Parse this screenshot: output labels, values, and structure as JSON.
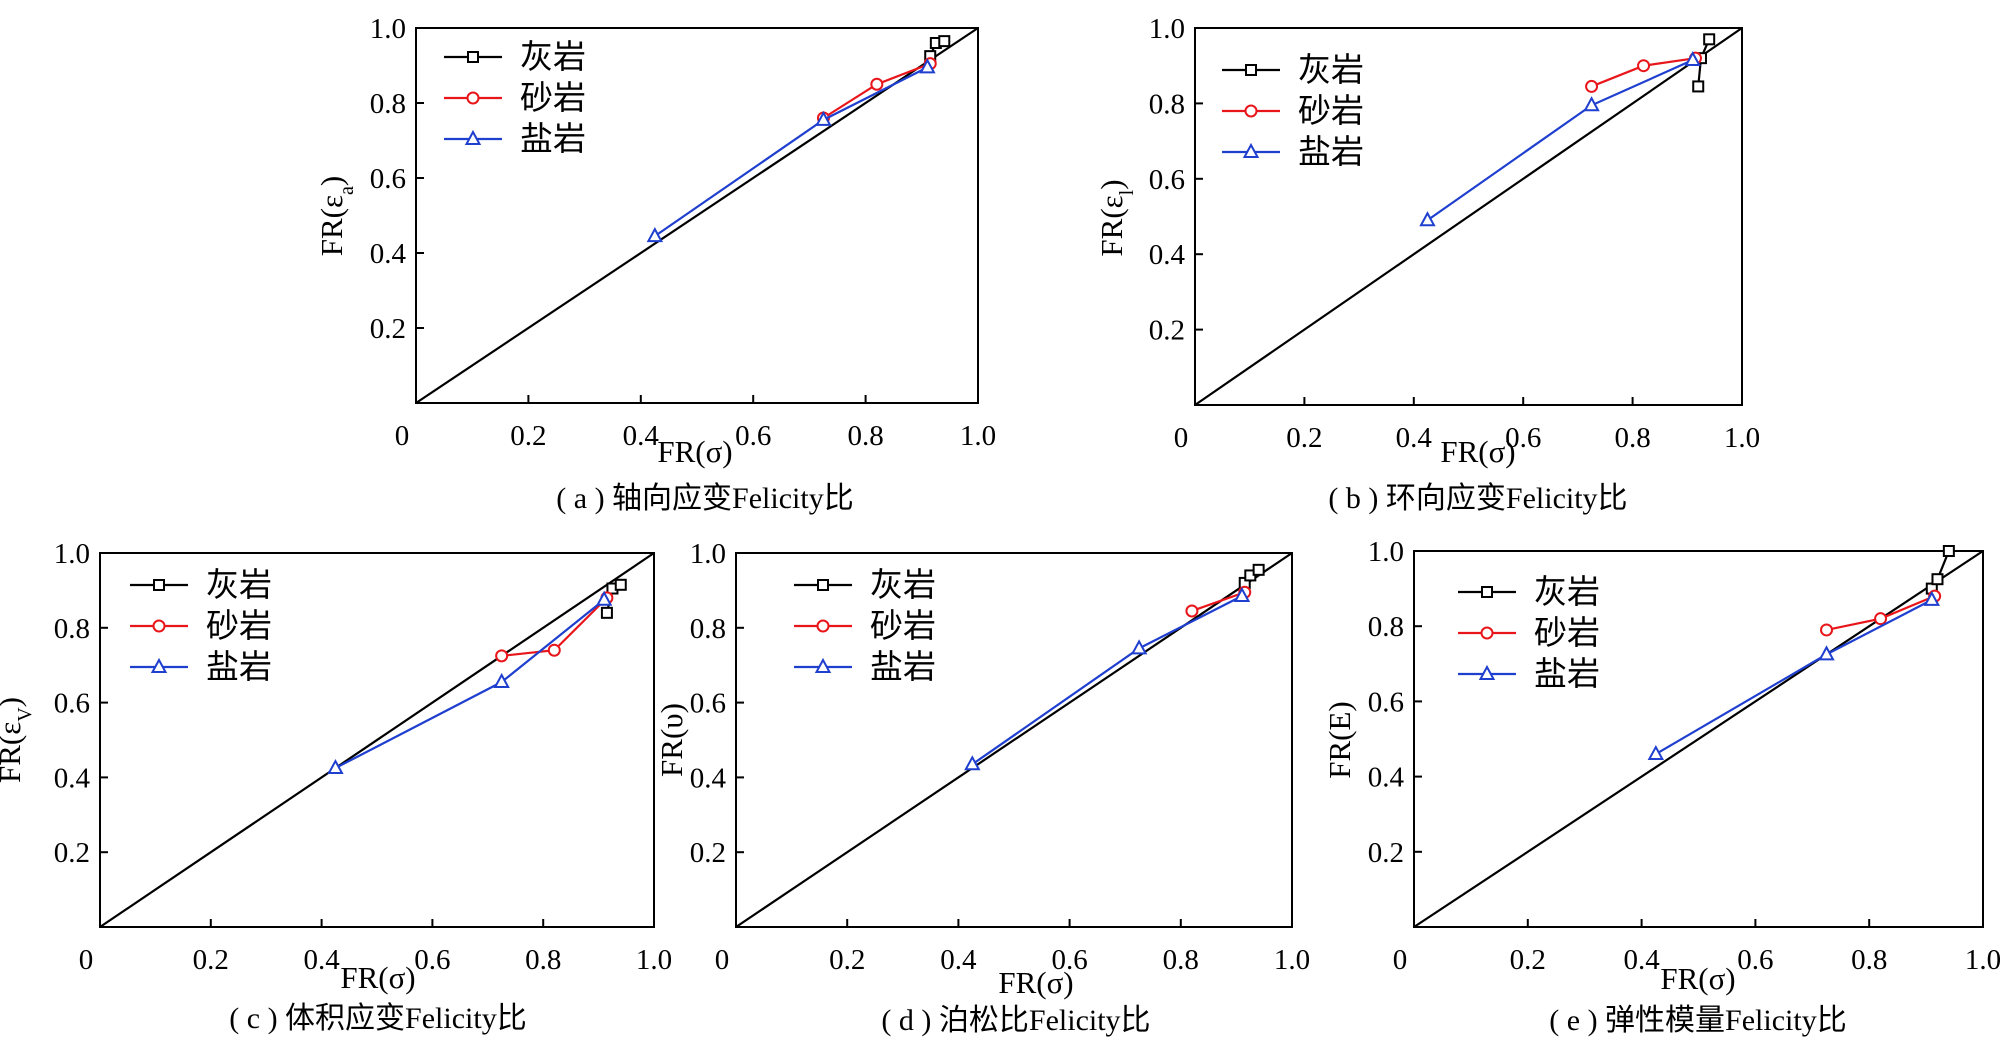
{
  "colors": {
    "limestone": "#000000",
    "sandstone": "#e8161b",
    "salt": "#1f3fcf",
    "diagonal": "#000000"
  },
  "legend": {
    "limestone": "灰岩",
    "sandstone": "砂岩",
    "salt": "盐岩"
  },
  "chart_data": [
    {
      "id": "a",
      "type": "line",
      "caption": "( a ) 轴向应变Felicity比",
      "xlabel": "FR(σ)",
      "ylabel": "FR(εa)",
      "ylabel_main": "FR(ε",
      "ylabel_sub": "a",
      "ylabel_close": ")",
      "xlim": [
        0,
        1
      ],
      "ylim": [
        0,
        1
      ],
      "xticks": [
        "0",
        "0.2",
        "0.4",
        "0.6",
        "0.8",
        "1.0"
      ],
      "yticks": [
        "0.2",
        "0.4",
        "0.6",
        "0.8",
        "1.0"
      ],
      "diagonal": true,
      "legend_position": "top-left",
      "series": [
        {
          "name": "灰岩",
          "marker": "square",
          "x": [
            0.915,
            0.925,
            0.94
          ],
          "y": [
            0.925,
            0.96,
            0.965
          ]
        },
        {
          "name": "砂岩",
          "marker": "circle",
          "x": [
            0.725,
            0.82,
            0.915
          ],
          "y": [
            0.76,
            0.85,
            0.905
          ]
        },
        {
          "name": "盐岩",
          "marker": "triangle",
          "x": [
            0.425,
            0.725,
            0.91
          ],
          "y": [
            0.445,
            0.755,
            0.895
          ]
        }
      ]
    },
    {
      "id": "b",
      "type": "line",
      "caption": "( b ) 环向应变Felicity比",
      "xlabel": "FR(σ)",
      "ylabel": "FR(εl)",
      "ylabel_main": "FR(ε",
      "ylabel_sub": "l",
      "ylabel_close": ")",
      "xlim": [
        0,
        1
      ],
      "ylim": [
        0,
        1
      ],
      "xticks": [
        "0",
        "0.2",
        "0.4",
        "0.6",
        "0.8",
        "1.0"
      ],
      "yticks": [
        "0.2",
        "0.4",
        "0.6",
        "0.8",
        "1.0"
      ],
      "diagonal": true,
      "legend_position": "top-left",
      "series": [
        {
          "name": "灰岩",
          "marker": "square",
          "x": [
            0.92,
            0.925,
            0.94
          ],
          "y": [
            0.845,
            0.92,
            0.97
          ]
        },
        {
          "name": "砂岩",
          "marker": "circle",
          "x": [
            0.725,
            0.82,
            0.915
          ],
          "y": [
            0.845,
            0.9,
            0.92
          ]
        },
        {
          "name": "盐岩",
          "marker": "triangle",
          "x": [
            0.425,
            0.725,
            0.91
          ],
          "y": [
            0.49,
            0.795,
            0.915
          ]
        }
      ]
    },
    {
      "id": "c",
      "type": "line",
      "caption": "( c ) 体积应变Felicity比",
      "xlabel": "FR(σ)",
      "ylabel": "FR(εV)",
      "ylabel_main": "FR(ε",
      "ylabel_sub": "V",
      "ylabel_close": ")",
      "xlim": [
        0,
        1
      ],
      "ylim": [
        0,
        1
      ],
      "xticks": [
        "0",
        "0.2",
        "0.4",
        "0.6",
        "0.8",
        "1.0"
      ],
      "yticks": [
        "0.2",
        "0.4",
        "0.6",
        "0.8",
        "1.0"
      ],
      "diagonal": true,
      "legend_position": "top-left",
      "series": [
        {
          "name": "灰岩",
          "marker": "square",
          "x": [
            0.915,
            0.925,
            0.94
          ],
          "y": [
            0.84,
            0.905,
            0.915
          ]
        },
        {
          "name": "砂岩",
          "marker": "circle",
          "x": [
            0.725,
            0.82,
            0.915
          ],
          "y": [
            0.725,
            0.74,
            0.88
          ]
        },
        {
          "name": "盐岩",
          "marker": "triangle",
          "x": [
            0.425,
            0.725,
            0.91
          ],
          "y": [
            0.425,
            0.655,
            0.875
          ]
        }
      ]
    },
    {
      "id": "d",
      "type": "line",
      "caption": "( d ) 泊松比Felicity比",
      "xlabel": "FR(σ)",
      "ylabel": "FR(υ)",
      "ylabel_main": "FR(υ)",
      "ylabel_sub": "",
      "ylabel_close": "",
      "xlim": [
        0,
        1
      ],
      "ylim": [
        0,
        1
      ],
      "xticks": [
        "0",
        "0.2",
        "0.4",
        "0.6",
        "0.8",
        "1.0"
      ],
      "yticks": [
        "0.2",
        "0.4",
        "0.6",
        "0.8",
        "1.0"
      ],
      "diagonal": true,
      "legend_position": "top-left",
      "series": [
        {
          "name": "灰岩",
          "marker": "square",
          "x": [
            0.915,
            0.925,
            0.94
          ],
          "y": [
            0.92,
            0.94,
            0.955
          ]
        },
        {
          "name": "砂岩",
          "marker": "circle",
          "x": [
            0.82,
            0.915
          ],
          "y": [
            0.845,
            0.895
          ]
        },
        {
          "name": "盐岩",
          "marker": "triangle",
          "x": [
            0.425,
            0.725,
            0.91
          ],
          "y": [
            0.435,
            0.745,
            0.885
          ]
        }
      ]
    },
    {
      "id": "e",
      "type": "line",
      "caption": "( e ) 弹性模量Felicity比",
      "xlabel": "FR(σ)",
      "ylabel": "FR(E)",
      "ylabel_main": "FR(E)",
      "ylabel_sub": "",
      "ylabel_close": "",
      "xlim": [
        0,
        1
      ],
      "ylim": [
        0,
        1
      ],
      "xticks": [
        "0",
        "0.2",
        "0.4",
        "0.6",
        "0.8",
        "1.0"
      ],
      "yticks": [
        "0.2",
        "0.4",
        "0.6",
        "0.8",
        "1.0"
      ],
      "diagonal": true,
      "legend_position": "top-left",
      "series": [
        {
          "name": "灰岩",
          "marker": "square",
          "x": [
            0.91,
            0.92,
            0.94
          ],
          "y": [
            0.9,
            0.925,
            1.0
          ]
        },
        {
          "name": "砂岩",
          "marker": "circle",
          "x": [
            0.725,
            0.82,
            0.915
          ],
          "y": [
            0.79,
            0.82,
            0.88
          ]
        },
        {
          "name": "盐岩",
          "marker": "triangle",
          "x": [
            0.425,
            0.725,
            0.91
          ],
          "y": [
            0.46,
            0.725,
            0.87
          ]
        }
      ]
    }
  ]
}
